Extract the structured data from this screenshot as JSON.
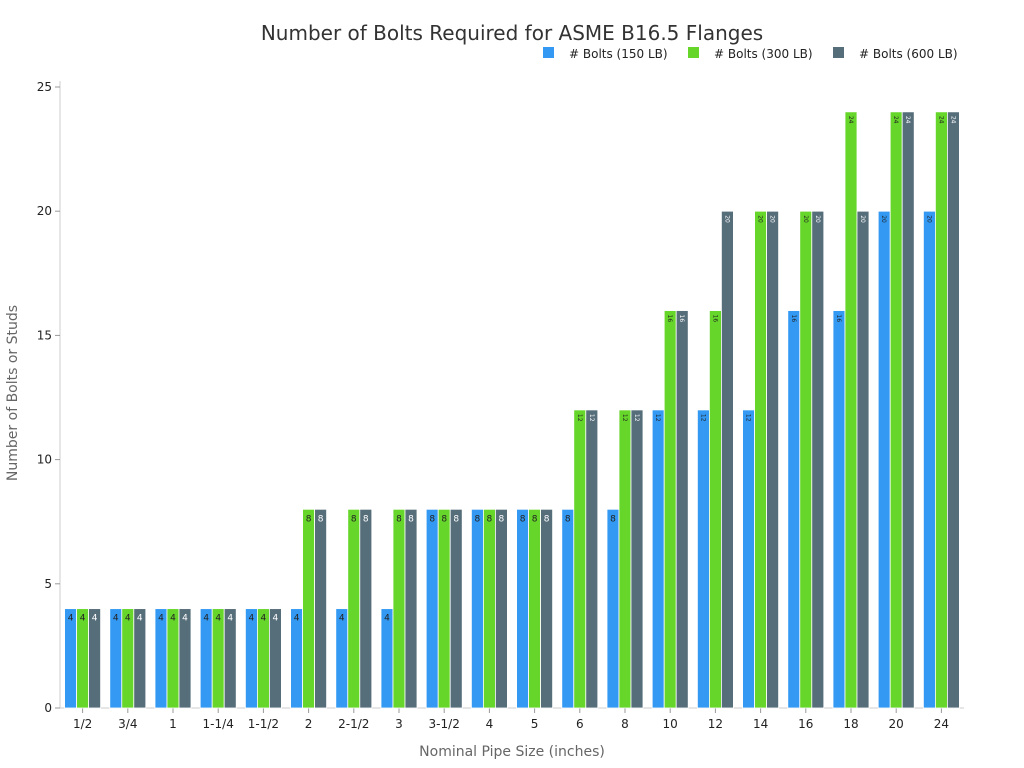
{
  "chart_data": {
    "type": "bar",
    "title": "Number of Bolts Required for ASME B16.5 Flanges",
    "xlabel": "Nominal Pipe Size (inches)",
    "ylabel": "Number of Bolts or Studs",
    "ylim": [
      0,
      25
    ],
    "yticks": [
      0,
      5,
      10,
      15,
      20,
      25
    ],
    "grid": false,
    "legend_position": "top-right",
    "categories": [
      "1/2",
      "3/4",
      "1",
      "1-1/4",
      "1-1/2",
      "2",
      "2-1/2",
      "3",
      "3-1/2",
      "4",
      "5",
      "6",
      "8",
      "10",
      "12",
      "14",
      "16",
      "18",
      "20",
      "24"
    ],
    "series": [
      {
        "name": "# Bolts (150 LB)",
        "color": "#3399f3",
        "values": [
          4,
          4,
          4,
          4,
          4,
          4,
          4,
          4,
          8,
          8,
          8,
          8,
          8,
          12,
          12,
          12,
          16,
          16,
          20,
          20
        ]
      },
      {
        "name": "# Bolts (300 LB)",
        "color": "#66d62a",
        "values": [
          4,
          4,
          4,
          4,
          4,
          8,
          8,
          8,
          8,
          8,
          8,
          12,
          12,
          16,
          16,
          20,
          20,
          24,
          24,
          24
        ]
      },
      {
        "name": "# Bolts (600 LB)",
        "color": "#566d7a",
        "values": [
          4,
          4,
          4,
          4,
          4,
          8,
          8,
          8,
          8,
          8,
          8,
          12,
          12,
          16,
          20,
          20,
          20,
          20,
          24,
          24
        ]
      }
    ]
  }
}
